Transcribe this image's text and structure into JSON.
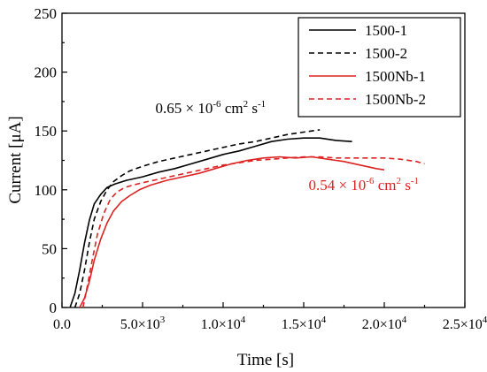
{
  "colors": {
    "black": "#000000",
    "red": "#dd2222",
    "axis": "#000000"
  },
  "chart_data": {
    "type": "line",
    "xlabel": "Time [s]",
    "ylabel": "Current [μA]",
    "xlim": [
      0,
      25000
    ],
    "ylim": [
      0,
      250
    ],
    "x_ticks": [
      {
        "value": 0,
        "mant": "0.0",
        "exp": ""
      },
      {
        "value": 5000,
        "mant": "5.0×10",
        "exp": "3"
      },
      {
        "value": 10000,
        "mant": "1.0×10",
        "exp": "4"
      },
      {
        "value": 15000,
        "mant": "1.5×10",
        "exp": "4"
      },
      {
        "value": 20000,
        "mant": "2.0×10",
        "exp": "4"
      },
      {
        "value": 25000,
        "mant": "2.5×10",
        "exp": "4"
      }
    ],
    "y_ticks": [
      0,
      50,
      100,
      150,
      200,
      250
    ],
    "grid": false,
    "legend_position": "top-right",
    "annotations": [
      {
        "text_a": "0.65 × 10",
        "sup1": "-6",
        "text_b": " cm",
        "sup2": "2",
        "text_c": " s",
        "sup3": "-1",
        "color": "#000000",
        "x": 5800,
        "y": 165
      },
      {
        "text_a": "0.54 × 10",
        "sup1": "-6",
        "text_b": " cm",
        "sup2": "2",
        "text_c": " s",
        "sup3": "-1",
        "color": "#dd2222",
        "x": 15300,
        "y": 100
      }
    ],
    "series": [
      {
        "name": "1500-1",
        "color": "#000000",
        "dash": "solid",
        "x": [
          500,
          800,
          1100,
          1400,
          1700,
          2000,
          2400,
          2800,
          3300,
          4000,
          5000,
          6000,
          7000,
          8000,
          9000,
          10000,
          11000,
          12000,
          13000,
          14000,
          15000,
          16000,
          17000,
          18000
        ],
        "y": [
          0,
          12,
          32,
          55,
          74,
          88,
          96,
          102,
          105,
          108,
          111,
          115,
          118,
          122,
          126,
          130,
          133,
          137,
          141,
          143,
          144,
          144,
          142,
          141
        ]
      },
      {
        "name": "1500-2",
        "color": "#000000",
        "dash": "dashed",
        "x": [
          800,
          1100,
          1400,
          1700,
          2000,
          2400,
          2800,
          3200,
          3700,
          4200,
          5000,
          6000,
          7000,
          8000,
          9000,
          10000,
          11000,
          12000,
          13000,
          14000,
          15000,
          16000
        ],
        "y": [
          0,
          12,
          32,
          55,
          75,
          90,
          100,
          107,
          112,
          116,
          120,
          124,
          127,
          130,
          133,
          136,
          139,
          141,
          144,
          147,
          149,
          151
        ]
      },
      {
        "name": "1500Nb-1",
        "color": "#dd2222",
        "dash": "solid",
        "x": [
          1100,
          1400,
          1700,
          2000,
          2400,
          2800,
          3200,
          3700,
          4200,
          4800,
          5500,
          6500,
          7500,
          8500,
          9500,
          10500,
          11500,
          12500,
          13500,
          14500,
          15500,
          16500,
          17500,
          18500,
          19500,
          20000
        ],
        "y": [
          0,
          8,
          22,
          40,
          58,
          72,
          82,
          90,
          95,
          100,
          104,
          108,
          111,
          114,
          118,
          122,
          125,
          127,
          128,
          127,
          128,
          126,
          124,
          121,
          118,
          117
        ]
      },
      {
        "name": "1500Nb-2",
        "color": "#dd2222",
        "dash": "dashed",
        "x": [
          1300,
          1600,
          1900,
          2200,
          2600,
          3000,
          3400,
          3900,
          4400,
          5000,
          6000,
          7000,
          8000,
          9000,
          10000,
          11000,
          12000,
          13000,
          14000,
          15000,
          16000,
          17000,
          18000,
          19000,
          20000,
          21000,
          22000,
          22500
        ],
        "y": [
          0,
          20,
          42,
          62,
          80,
          92,
          98,
          102,
          104,
          106,
          109,
          112,
          115,
          118,
          121,
          123,
          125,
          126,
          127,
          128,
          128,
          127,
          127,
          127,
          127,
          126,
          124,
          122
        ]
      }
    ]
  }
}
